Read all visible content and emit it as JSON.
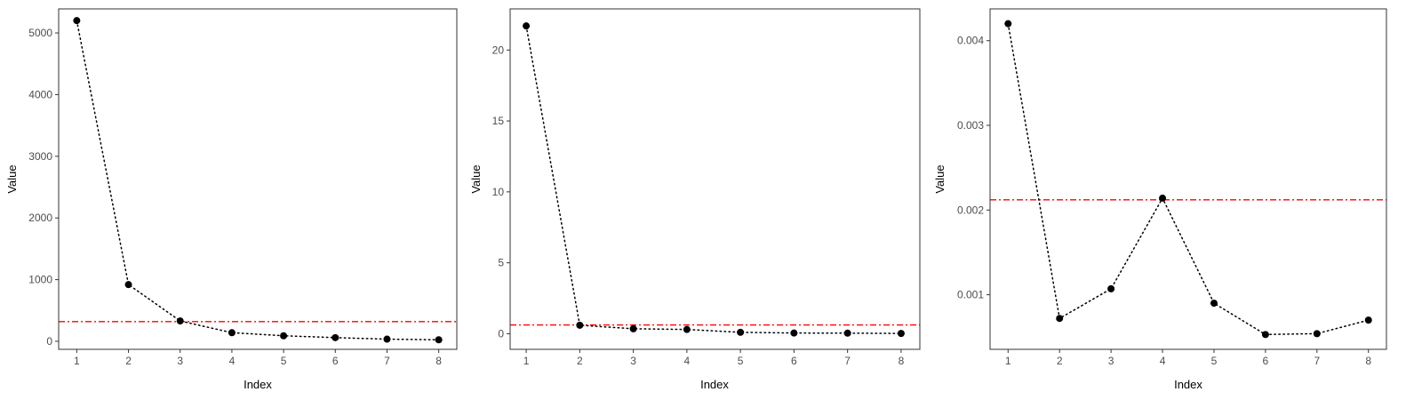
{
  "chart_data": [
    {
      "type": "line",
      "xlabel": "Index",
      "ylabel": "Value",
      "x": [
        1,
        2,
        3,
        4,
        5,
        6,
        7,
        8
      ],
      "values": [
        5200,
        920,
        330,
        140,
        90,
        60,
        35,
        25
      ],
      "hline": 320,
      "xlim": [
        0.65,
        8.35
      ],
      "ylim": [
        -130,
        5390
      ],
      "xticks": [
        1,
        2,
        3,
        4,
        5,
        6,
        7,
        8
      ],
      "xtick_labels": [
        "1",
        "2",
        "3",
        "4",
        "5",
        "6",
        "7",
        "8"
      ],
      "yticks": [
        0,
        1000,
        2000,
        3000,
        4000,
        5000
      ],
      "ytick_labels": [
        "0",
        "1000",
        "2000",
        "3000",
        "4000",
        "5000"
      ],
      "grid": false,
      "line_style": "dotted",
      "hline_style": "dashdot"
    },
    {
      "type": "line",
      "xlabel": "Index",
      "ylabel": "Value",
      "x": [
        1,
        2,
        3,
        4,
        5,
        6,
        7,
        8
      ],
      "values": [
        21.7,
        0.6,
        0.35,
        0.3,
        0.1,
        0.05,
        0.04,
        0.02
      ],
      "hline": 0.62,
      "xlim": [
        0.7,
        8.35
      ],
      "ylim": [
        -1.1,
        22.9
      ],
      "xticks": [
        1,
        2,
        3,
        4,
        5,
        6,
        7,
        8
      ],
      "xtick_labels": [
        "1",
        "2",
        "3",
        "4",
        "5",
        "6",
        "7",
        "8"
      ],
      "yticks": [
        0,
        5,
        10,
        15,
        20
      ],
      "ytick_labels": [
        "0",
        "5",
        "10",
        "15",
        "20"
      ],
      "grid": false,
      "line_style": "dotted",
      "hline_style": "dashdot"
    },
    {
      "type": "line",
      "xlabel": "Index",
      "ylabel": "Value",
      "x": [
        1,
        2,
        3,
        4,
        5,
        6,
        7,
        8
      ],
      "values": [
        0.0042,
        0.00072,
        0.00107,
        0.00214,
        0.0009,
        0.00053,
        0.00054,
        0.0007
      ],
      "hline": 0.00212,
      "xlim": [
        0.65,
        8.35
      ],
      "ylim": [
        0.000355,
        0.004375
      ],
      "xticks": [
        1,
        2,
        3,
        4,
        5,
        6,
        7,
        8
      ],
      "xtick_labels": [
        "1",
        "2",
        "3",
        "4",
        "5",
        "6",
        "7",
        "8"
      ],
      "yticks": [
        0.001,
        0.002,
        0.003,
        0.004
      ],
      "ytick_labels": [
        "0.001",
        "0.002",
        "0.003",
        "0.004"
      ],
      "grid": false,
      "line_style": "dotted",
      "hline_style": "dashdot"
    }
  ],
  "colors": {
    "points": "#000000",
    "connector": "#000000",
    "threshold": "#ff0000",
    "panel_border": "#333333",
    "tick_text": "#4d4d4d"
  }
}
